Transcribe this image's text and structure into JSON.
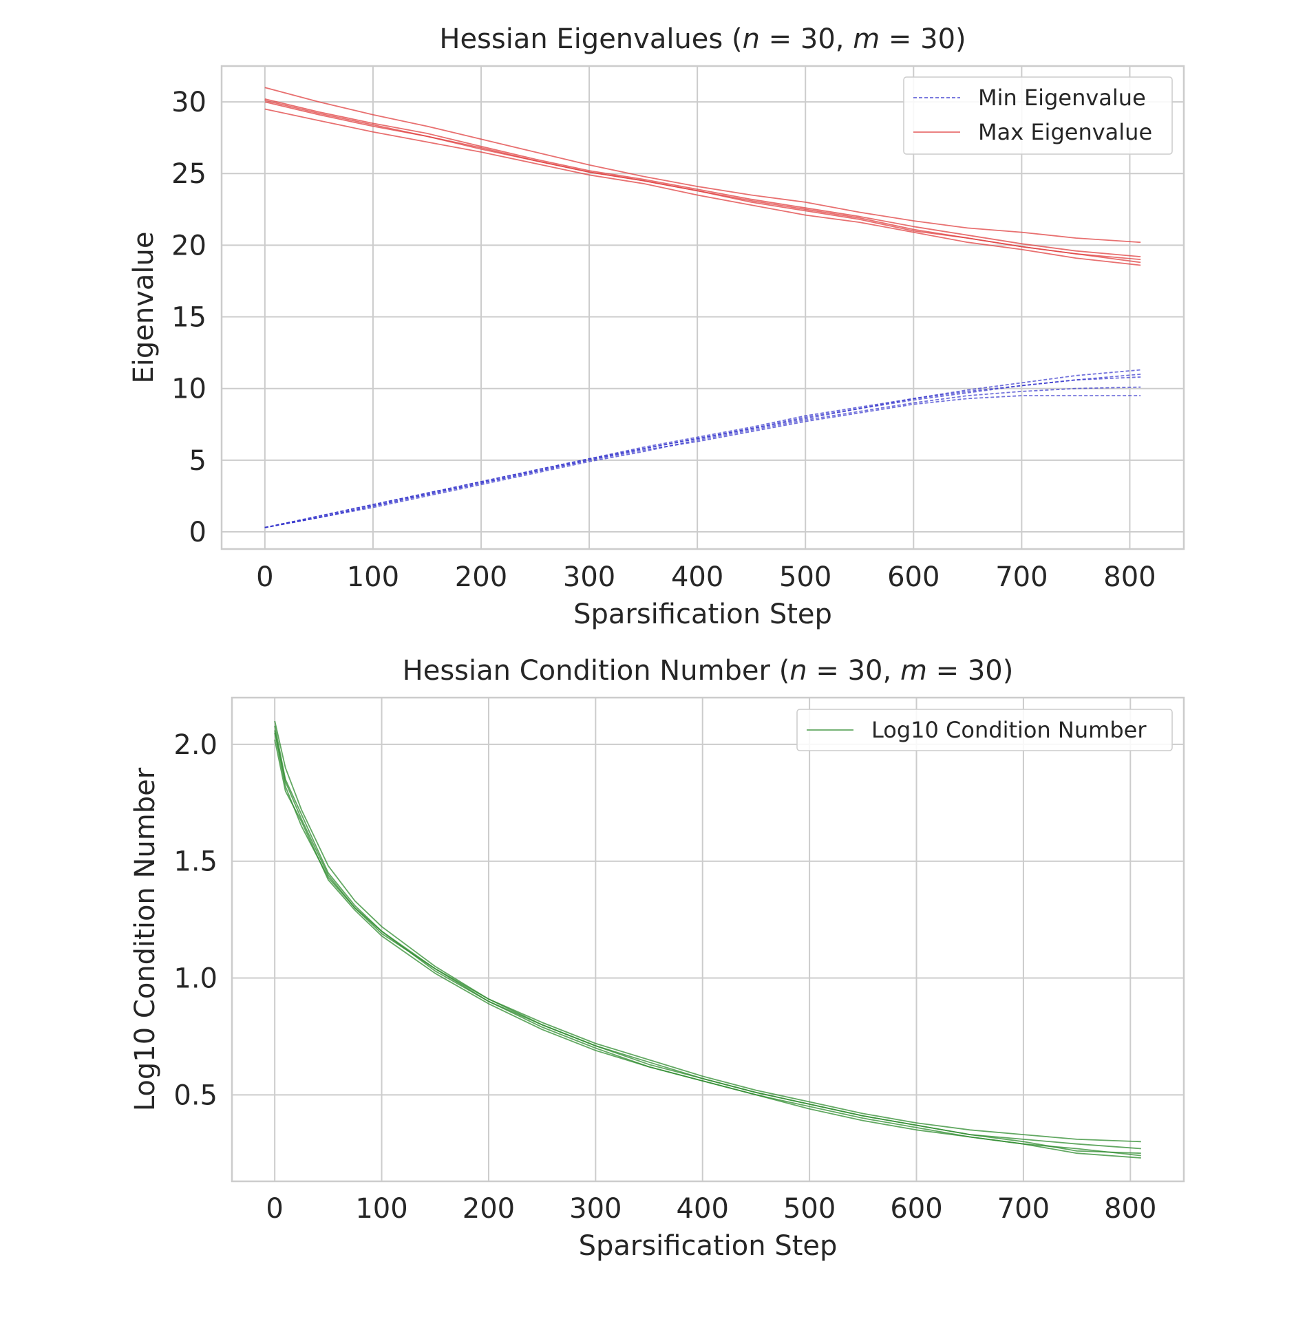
{
  "chart_data": [
    {
      "type": "line",
      "title": "Hessian Eigenvalues ($n = 30, m = 30$)",
      "title_parts": [
        "Hessian Eigenvalues (",
        "n",
        " = 30, ",
        "m",
        " = 30)"
      ],
      "xlabel": "Sparsification Step",
      "ylabel": "Eigenvalue",
      "xlim": [
        -40,
        850
      ],
      "ylim": [
        -1.2,
        32.5
      ],
      "xticks": [
        0,
        100,
        200,
        300,
        400,
        500,
        600,
        700,
        800
      ],
      "yticks": [
        0,
        5,
        10,
        15,
        20,
        25,
        30
      ],
      "grid": true,
      "legend": {
        "position": "top-right",
        "entries": [
          "Min Eigenvalue",
          "Max Eigenvalue"
        ]
      },
      "x": [
        0,
        50,
        100,
        150,
        200,
        250,
        300,
        350,
        400,
        450,
        500,
        550,
        600,
        650,
        700,
        750,
        810
      ],
      "series": [
        {
          "name": "Min Eigenvalue",
          "legend_label": "Min Eigenvalue",
          "color": "#3333cc",
          "style": "dashed",
          "values": [
            0.3,
            1.0,
            1.8,
            2.6,
            3.4,
            4.2,
            5.0,
            5.8,
            6.5,
            7.2,
            8.0,
            8.6,
            9.3,
            9.9,
            10.4,
            10.9,
            11.3
          ]
        },
        {
          "name": "Min Eigenvalue",
          "color": "#3333cc",
          "style": "dashed",
          "values": [
            0.3,
            1.1,
            1.9,
            2.7,
            3.5,
            4.3,
            5.1,
            5.9,
            6.6,
            7.3,
            8.1,
            8.7,
            9.3,
            9.8,
            10.2,
            10.6,
            11.0
          ]
        },
        {
          "name": "Min Eigenvalue",
          "color": "#3333cc",
          "style": "dashed",
          "values": [
            0.3,
            1.0,
            1.7,
            2.5,
            3.3,
            4.1,
            4.9,
            5.6,
            6.4,
            7.1,
            7.8,
            8.4,
            9.0,
            9.5,
            9.8,
            10.0,
            10.1
          ]
        },
        {
          "name": "Min Eigenvalue",
          "color": "#3333cc",
          "style": "dashed",
          "values": [
            0.3,
            1.0,
            1.8,
            2.6,
            3.4,
            4.2,
            5.0,
            5.7,
            6.3,
            7.0,
            7.7,
            8.3,
            8.9,
            9.3,
            9.5,
            9.5,
            9.5
          ]
        },
        {
          "name": "Min Eigenvalue",
          "color": "#3333cc",
          "style": "dashed",
          "values": [
            0.3,
            1.1,
            1.9,
            2.7,
            3.5,
            4.3,
            5.1,
            5.8,
            6.5,
            7.2,
            7.9,
            8.6,
            9.2,
            9.7,
            10.2,
            10.6,
            10.8
          ]
        },
        {
          "name": "Max Eigenvalue",
          "legend_label": "Max Eigenvalue",
          "color": "#e04040",
          "style": "solid",
          "values": [
            31.0,
            30.0,
            29.1,
            28.3,
            27.4,
            26.5,
            25.6,
            24.8,
            24.1,
            23.5,
            23.0,
            22.3,
            21.7,
            21.2,
            20.9,
            20.5,
            20.2
          ]
        },
        {
          "name": "Max Eigenvalue",
          "color": "#e04040",
          "style": "solid",
          "values": [
            30.2,
            29.3,
            28.5,
            27.8,
            26.9,
            26.0,
            25.2,
            24.6,
            23.9,
            23.2,
            22.6,
            22.0,
            21.3,
            20.7,
            20.1,
            19.6,
            19.2
          ]
        },
        {
          "name": "Max Eigenvalue",
          "color": "#e04040",
          "style": "solid",
          "values": [
            30.0,
            29.1,
            28.3,
            27.6,
            26.8,
            25.9,
            25.1,
            24.5,
            23.8,
            23.0,
            22.4,
            21.8,
            21.0,
            20.5,
            19.9,
            19.4,
            19.0
          ]
        },
        {
          "name": "Max Eigenvalue",
          "color": "#e04040",
          "style": "solid",
          "values": [
            29.5,
            28.7,
            27.9,
            27.2,
            26.5,
            25.7,
            24.9,
            24.3,
            23.5,
            22.8,
            22.1,
            21.6,
            20.9,
            20.2,
            19.7,
            19.1,
            18.6
          ]
        },
        {
          "name": "Max Eigenvalue",
          "color": "#e04040",
          "style": "solid",
          "values": [
            30.1,
            29.2,
            28.4,
            27.6,
            26.7,
            25.9,
            25.1,
            24.5,
            23.8,
            23.1,
            22.5,
            21.9,
            21.1,
            20.5,
            19.9,
            19.4,
            18.8
          ]
        }
      ]
    },
    {
      "type": "line",
      "title": "Hessian Condition Number ($n = 30, m = 30$)",
      "title_parts": [
        "Hessian Condition Number (",
        "n",
        " = 30, ",
        "m",
        " = 30)"
      ],
      "xlabel": "Sparsification Step",
      "ylabel": "Log10 Condition Number",
      "xlim": [
        -40,
        850
      ],
      "ylim": [
        0.13,
        2.2
      ],
      "xticks": [
        0,
        100,
        200,
        300,
        400,
        500,
        600,
        700,
        800
      ],
      "yticks": [
        0.5,
        1.0,
        1.5,
        2.0
      ],
      "ytick_labels": [
        "0.5",
        "1.0",
        "1.5",
        "2.0"
      ],
      "grid": true,
      "legend": {
        "position": "top-right",
        "entries": [
          "Log10 Condition Number"
        ]
      },
      "x": [
        0,
        10,
        25,
        50,
        75,
        100,
        150,
        200,
        250,
        300,
        350,
        400,
        450,
        500,
        550,
        600,
        650,
        700,
        750,
        810
      ],
      "series": [
        {
          "name": "Log10 Condition Number",
          "legend_label": "Log10 Condition Number",
          "color": "#2e8b2e",
          "style": "solid",
          "values": [
            2.1,
            1.9,
            1.72,
            1.48,
            1.33,
            1.22,
            1.05,
            0.91,
            0.81,
            0.72,
            0.65,
            0.58,
            0.52,
            0.47,
            0.42,
            0.38,
            0.35,
            0.33,
            0.31,
            0.3
          ]
        },
        {
          "name": "Log10 Condition Number",
          "color": "#2e8b2e",
          "style": "solid",
          "values": [
            2.05,
            1.82,
            1.65,
            1.43,
            1.3,
            1.19,
            1.04,
            0.9,
            0.8,
            0.71,
            0.64,
            0.57,
            0.51,
            0.46,
            0.41,
            0.37,
            0.33,
            0.31,
            0.29,
            0.27
          ]
        },
        {
          "name": "Log10 Condition Number",
          "color": "#2e8b2e",
          "style": "solid",
          "values": [
            2.08,
            1.85,
            1.7,
            1.45,
            1.31,
            1.2,
            1.03,
            0.9,
            0.79,
            0.7,
            0.62,
            0.56,
            0.5,
            0.45,
            0.4,
            0.36,
            0.32,
            0.29,
            0.27,
            0.24
          ]
        },
        {
          "name": "Log10 Condition Number",
          "color": "#2e8b2e",
          "style": "solid",
          "values": [
            2.02,
            1.8,
            1.67,
            1.42,
            1.29,
            1.18,
            1.02,
            0.89,
            0.78,
            0.69,
            0.62,
            0.56,
            0.5,
            0.44,
            0.39,
            0.35,
            0.32,
            0.29,
            0.25,
            0.23
          ]
        },
        {
          "name": "Log10 Condition Number",
          "color": "#2e8b2e",
          "style": "solid",
          "values": [
            2.06,
            1.84,
            1.68,
            1.44,
            1.3,
            1.2,
            1.04,
            0.91,
            0.8,
            0.71,
            0.63,
            0.57,
            0.51,
            0.46,
            0.41,
            0.37,
            0.33,
            0.3,
            0.26,
            0.25
          ]
        }
      ]
    }
  ]
}
